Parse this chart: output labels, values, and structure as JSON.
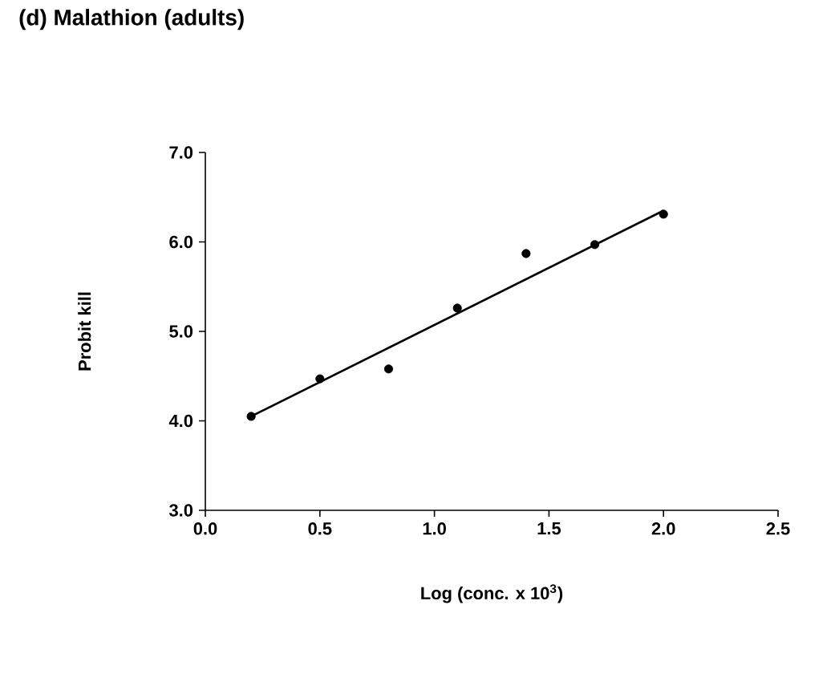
{
  "chart_data": {
    "type": "scatter",
    "title": "(d) Malathion (adults)",
    "xlabel": "Log (conc. x 10$^{3}$)",
    "ylabel": "Probit kill",
    "xlim": [
      0.0,
      2.5
    ],
    "xticks": [
      {
        "value": 0,
        "label": "0.0"
      },
      0.5,
      {
        "value": 1,
        "label": "1.0"
      },
      1.5,
      {
        "value": 2,
        "label": "2.0"
      },
      2.5
    ],
    "ylim": [
      3.0,
      7.0
    ],
    "yticks": [
      {
        "value": 3,
        "label": "3.0"
      },
      {
        "value": 4,
        "label": "4.0"
      },
      {
        "value": 5,
        "label": "5.0"
      },
      {
        "value": 6,
        "label": "6.0"
      },
      {
        "value": 7,
        "label": "7.0"
      }
    ],
    "grid": false,
    "series": [
      {
        "marker": "circle",
        "color": "#000000",
        "x": [
          0.2,
          0.5,
          0.8,
          1.1,
          1.4,
          1.7,
          2.0
        ],
        "values": [
          4.05,
          4.47,
          4.58,
          5.26,
          5.87,
          5.97,
          6.31
        ]
      },
      {
        "type": "line",
        "marker": "none",
        "color": "#000000",
        "x": [
          0.2,
          2.0
        ],
        "values": [
          4.05,
          6.35
        ]
      }
    ]
  }
}
